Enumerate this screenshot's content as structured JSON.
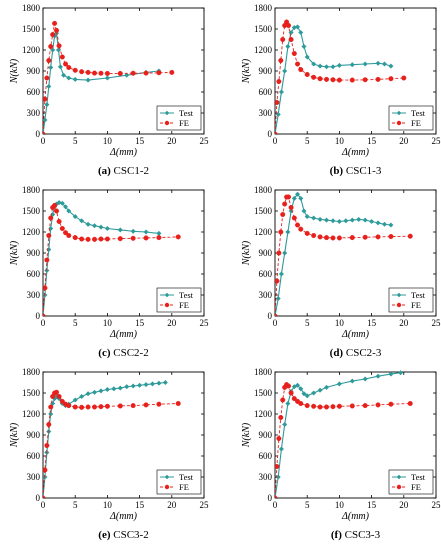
{
  "colors": {
    "test": "#2e9a9a",
    "fe": "#e8201c",
    "axis": "#000000"
  },
  "panels": [
    {
      "id": "a",
      "caption_label": "(a)",
      "caption_text": "CSC1-2"
    },
    {
      "id": "b",
      "caption_label": "(b)",
      "caption_text": "CSC1-3"
    },
    {
      "id": "c",
      "caption_label": "(c)",
      "caption_text": "CSC2-2"
    },
    {
      "id": "d",
      "caption_label": "(d)",
      "caption_text": "CSC2-3"
    },
    {
      "id": "e",
      "caption_label": "(e)",
      "caption_text": "CSC3-2"
    },
    {
      "id": "f",
      "caption_label": "(f)",
      "caption_text": "CSC3-3"
    }
  ],
  "chart_data": [
    {
      "type": "line",
      "panel": "a",
      "title": "CSC1-2",
      "xlabel": "Δ(mm)",
      "ylabel": "N(kN)",
      "xlim": [
        0,
        25
      ],
      "ylim": [
        0,
        1800
      ],
      "xticks": [
        0,
        5,
        10,
        15,
        20,
        25
      ],
      "yticks": [
        0,
        300,
        600,
        900,
        1200,
        1500,
        1800
      ],
      "legend": "bottom-right",
      "grid": false,
      "series": [
        {
          "name": "Test",
          "style": "solid",
          "marker": "diamond",
          "x": [
            0,
            0.3,
            0.6,
            0.9,
            1.2,
            1.5,
            1.8,
            2.1,
            2.4,
            2.7,
            3.2,
            4.0,
            5.0,
            7.0,
            10.0,
            13.0,
            16.0,
            18.0
          ],
          "y": [
            0,
            200,
            420,
            680,
            950,
            1200,
            1400,
            1440,
            1200,
            960,
            840,
            800,
            780,
            770,
            800,
            840,
            880,
            900
          ]
        },
        {
          "name": "FE",
          "style": "dashed",
          "marker": "circle",
          "x": [
            0,
            0.3,
            0.6,
            0.9,
            1.2,
            1.5,
            1.8,
            2.1,
            2.5,
            3.0,
            3.5,
            4.0,
            5.0,
            6.0,
            7.0,
            8.0,
            9.0,
            10.0,
            12.0,
            14.0,
            16.0,
            18.0,
            20.0
          ],
          "y": [
            0,
            500,
            800,
            1050,
            1250,
            1420,
            1580,
            1480,
            1260,
            1100,
            1000,
            950,
            910,
            890,
            880,
            870,
            868,
            865,
            865,
            868,
            870,
            875,
            880
          ]
        }
      ]
    },
    {
      "type": "line",
      "panel": "b",
      "title": "CSC1-3",
      "xlabel": "Δ(mm)",
      "ylabel": "N(kN)",
      "xlim": [
        0,
        25
      ],
      "ylim": [
        0,
        1800
      ],
      "xticks": [
        0,
        5,
        10,
        15,
        20,
        25
      ],
      "yticks": [
        0,
        300,
        600,
        900,
        1200,
        1500,
        1800
      ],
      "legend": "bottom-right",
      "grid": false,
      "series": [
        {
          "name": "Test",
          "style": "solid",
          "marker": "diamond",
          "x": [
            0,
            0.5,
            1.0,
            1.5,
            2.0,
            2.5,
            3.0,
            3.5,
            4.0,
            4.5,
            5.0,
            6.0,
            7.0,
            8.0,
            9.0,
            10.0,
            12.0,
            14.0,
            16.0,
            17.0,
            18.0
          ],
          "y": [
            0,
            280,
            600,
            900,
            1250,
            1450,
            1520,
            1530,
            1450,
            1250,
            1100,
            1000,
            970,
            960,
            960,
            980,
            990,
            1000,
            1010,
            1000,
            970
          ]
        },
        {
          "name": "FE",
          "style": "dashed",
          "marker": "circle",
          "x": [
            0,
            0.3,
            0.6,
            0.9,
            1.2,
            1.5,
            1.8,
            2.1,
            2.5,
            3.0,
            3.5,
            4.0,
            5.0,
            6.0,
            7.0,
            8.0,
            9.0,
            10.0,
            12.0,
            14.0,
            16.0,
            18.0,
            20.0
          ],
          "y": [
            0,
            450,
            750,
            1050,
            1350,
            1550,
            1600,
            1550,
            1350,
            1150,
            1000,
            920,
            850,
            810,
            790,
            780,
            775,
            770,
            770,
            775,
            780,
            790,
            800
          ]
        }
      ]
    },
    {
      "type": "line",
      "panel": "c",
      "title": "CSC2-2",
      "xlabel": "Δ(mm)",
      "ylabel": "N(kN)",
      "xlim": [
        0,
        25
      ],
      "ylim": [
        0,
        1800
      ],
      "xticks": [
        0,
        5,
        10,
        15,
        20,
        25
      ],
      "yticks": [
        0,
        300,
        600,
        900,
        1200,
        1500,
        1800
      ],
      "legend": "bottom-right",
      "grid": false,
      "series": [
        {
          "name": "Test",
          "style": "solid",
          "marker": "diamond",
          "x": [
            0,
            0.3,
            0.6,
            0.9,
            1.2,
            1.5,
            1.8,
            2.1,
            2.5,
            3.0,
            3.5,
            4.0,
            5.0,
            6.0,
            7.0,
            8.0,
            9.0,
            10.0,
            12.0,
            14.0,
            16.0,
            18.0
          ],
          "y": [
            0,
            300,
            650,
            950,
            1250,
            1450,
            1560,
            1600,
            1620,
            1610,
            1560,
            1500,
            1420,
            1360,
            1310,
            1290,
            1270,
            1250,
            1230,
            1210,
            1200,
            1180
          ]
        },
        {
          "name": "FE",
          "style": "dashed",
          "marker": "circle",
          "x": [
            0,
            0.3,
            0.6,
            0.9,
            1.2,
            1.5,
            1.8,
            2.1,
            2.5,
            3.0,
            3.5,
            4.0,
            5.0,
            6.0,
            7.0,
            8.0,
            9.0,
            10.0,
            12.0,
            14.0,
            16.0,
            18.0,
            21.0
          ],
          "y": [
            0,
            400,
            800,
            1150,
            1400,
            1550,
            1580,
            1500,
            1350,
            1250,
            1190,
            1150,
            1120,
            1100,
            1095,
            1095,
            1100,
            1100,
            1105,
            1110,
            1115,
            1120,
            1130
          ]
        }
      ]
    },
    {
      "type": "line",
      "panel": "d",
      "title": "CSC2-3",
      "xlabel": "Δ(mm)",
      "ylabel": "N(kN)",
      "xlim": [
        0,
        25
      ],
      "ylim": [
        0,
        1800
      ],
      "xticks": [
        0,
        5,
        10,
        15,
        20,
        25
      ],
      "yticks": [
        0,
        300,
        600,
        900,
        1200,
        1500,
        1800
      ],
      "legend": "bottom-right",
      "grid": false,
      "series": [
        {
          "name": "Test",
          "style": "solid",
          "marker": "diamond",
          "x": [
            0,
            0.5,
            1.0,
            1.5,
            2.0,
            2.5,
            3.0,
            3.5,
            4.0,
            4.5,
            5.0,
            6.0,
            7.0,
            8.0,
            9.0,
            10.0,
            11.0,
            12.0,
            13.0,
            14.0,
            15.0,
            16.0,
            17.0,
            18.0
          ],
          "y": [
            0,
            250,
            600,
            900,
            1200,
            1500,
            1680,
            1740,
            1680,
            1500,
            1420,
            1400,
            1380,
            1370,
            1360,
            1350,
            1360,
            1370,
            1380,
            1370,
            1350,
            1330,
            1310,
            1300
          ]
        },
        {
          "name": "FE",
          "style": "dashed",
          "marker": "circle",
          "x": [
            0,
            0.3,
            0.6,
            0.9,
            1.2,
            1.5,
            1.8,
            2.1,
            2.5,
            3.0,
            3.5,
            4.0,
            5.0,
            6.0,
            7.0,
            8.0,
            9.0,
            10.0,
            12.0,
            14.0,
            16.0,
            18.0,
            21.0
          ],
          "y": [
            0,
            500,
            900,
            1200,
            1450,
            1600,
            1700,
            1700,
            1550,
            1400,
            1300,
            1240,
            1180,
            1150,
            1130,
            1120,
            1115,
            1115,
            1120,
            1125,
            1130,
            1135,
            1140
          ]
        }
      ]
    },
    {
      "type": "line",
      "panel": "e",
      "title": "CSC3-2",
      "xlabel": "Δ(mm)",
      "ylabel": "N(kN)",
      "xlim": [
        0,
        25
      ],
      "ylim": [
        0,
        1800
      ],
      "xticks": [
        0,
        5,
        10,
        15,
        20,
        25
      ],
      "yticks": [
        0,
        300,
        600,
        900,
        1200,
        1500,
        1800
      ],
      "legend": "bottom-right",
      "grid": false,
      "series": [
        {
          "name": "Test",
          "style": "solid",
          "marker": "diamond",
          "x": [
            0,
            0.3,
            0.6,
            0.9,
            1.2,
            1.5,
            1.8,
            2.1,
            2.5,
            3.0,
            3.5,
            4.0,
            5.0,
            6.0,
            7.0,
            8.0,
            9.0,
            10.0,
            11.0,
            12.0,
            13.0,
            14.0,
            15.0,
            16.0,
            17.0,
            18.0,
            19.0
          ],
          "y": [
            0,
            300,
            650,
            950,
            1200,
            1350,
            1420,
            1450,
            1420,
            1350,
            1320,
            1340,
            1400,
            1450,
            1490,
            1510,
            1530,
            1550,
            1560,
            1570,
            1590,
            1600,
            1610,
            1620,
            1630,
            1640,
            1650
          ]
        },
        {
          "name": "FE",
          "style": "dashed",
          "marker": "circle",
          "x": [
            0,
            0.3,
            0.6,
            0.9,
            1.2,
            1.5,
            1.8,
            2.1,
            2.5,
            3.0,
            3.5,
            4.0,
            5.0,
            6.0,
            7.0,
            8.0,
            9.0,
            10.0,
            12.0,
            14.0,
            16.0,
            18.0,
            21.0
          ],
          "y": [
            0,
            400,
            750,
            1050,
            1300,
            1450,
            1500,
            1510,
            1450,
            1380,
            1340,
            1320,
            1300,
            1295,
            1300,
            1300,
            1305,
            1310,
            1315,
            1320,
            1330,
            1340,
            1350
          ]
        }
      ]
    },
    {
      "type": "line",
      "panel": "f",
      "title": "CSC3-3",
      "xlabel": "Δ(mm)",
      "ylabel": "N(kN)",
      "xlim": [
        0,
        25
      ],
      "ylim": [
        0,
        1800
      ],
      "xticks": [
        0,
        5,
        10,
        15,
        20,
        25
      ],
      "yticks": [
        0,
        300,
        600,
        900,
        1200,
        1500,
        1800
      ],
      "legend": "bottom-right",
      "grid": false,
      "series": [
        {
          "name": "Test",
          "style": "solid",
          "marker": "diamond",
          "x": [
            0,
            0.5,
            1.0,
            1.5,
            2.0,
            2.5,
            3.0,
            3.5,
            4.0,
            4.5,
            5.0,
            6.0,
            7.0,
            8.0,
            10.0,
            12.0,
            14.0,
            16.0,
            18.0,
            19.5
          ],
          "y": [
            0,
            300,
            700,
            1050,
            1350,
            1520,
            1590,
            1610,
            1560,
            1490,
            1460,
            1500,
            1540,
            1580,
            1630,
            1670,
            1700,
            1740,
            1770,
            1790
          ]
        },
        {
          "name": "FE",
          "style": "dashed",
          "marker": "circle",
          "x": [
            0,
            0.3,
            0.6,
            0.9,
            1.2,
            1.5,
            1.8,
            2.1,
            2.5,
            3.0,
            3.5,
            4.0,
            5.0,
            6.0,
            7.0,
            8.0,
            9.0,
            10.0,
            12.0,
            14.0,
            16.0,
            18.0,
            21.0
          ],
          "y": [
            0,
            450,
            850,
            1150,
            1400,
            1580,
            1620,
            1600,
            1500,
            1420,
            1380,
            1350,
            1320,
            1310,
            1300,
            1300,
            1305,
            1310,
            1315,
            1320,
            1330,
            1340,
            1350
          ]
        }
      ]
    }
  ]
}
